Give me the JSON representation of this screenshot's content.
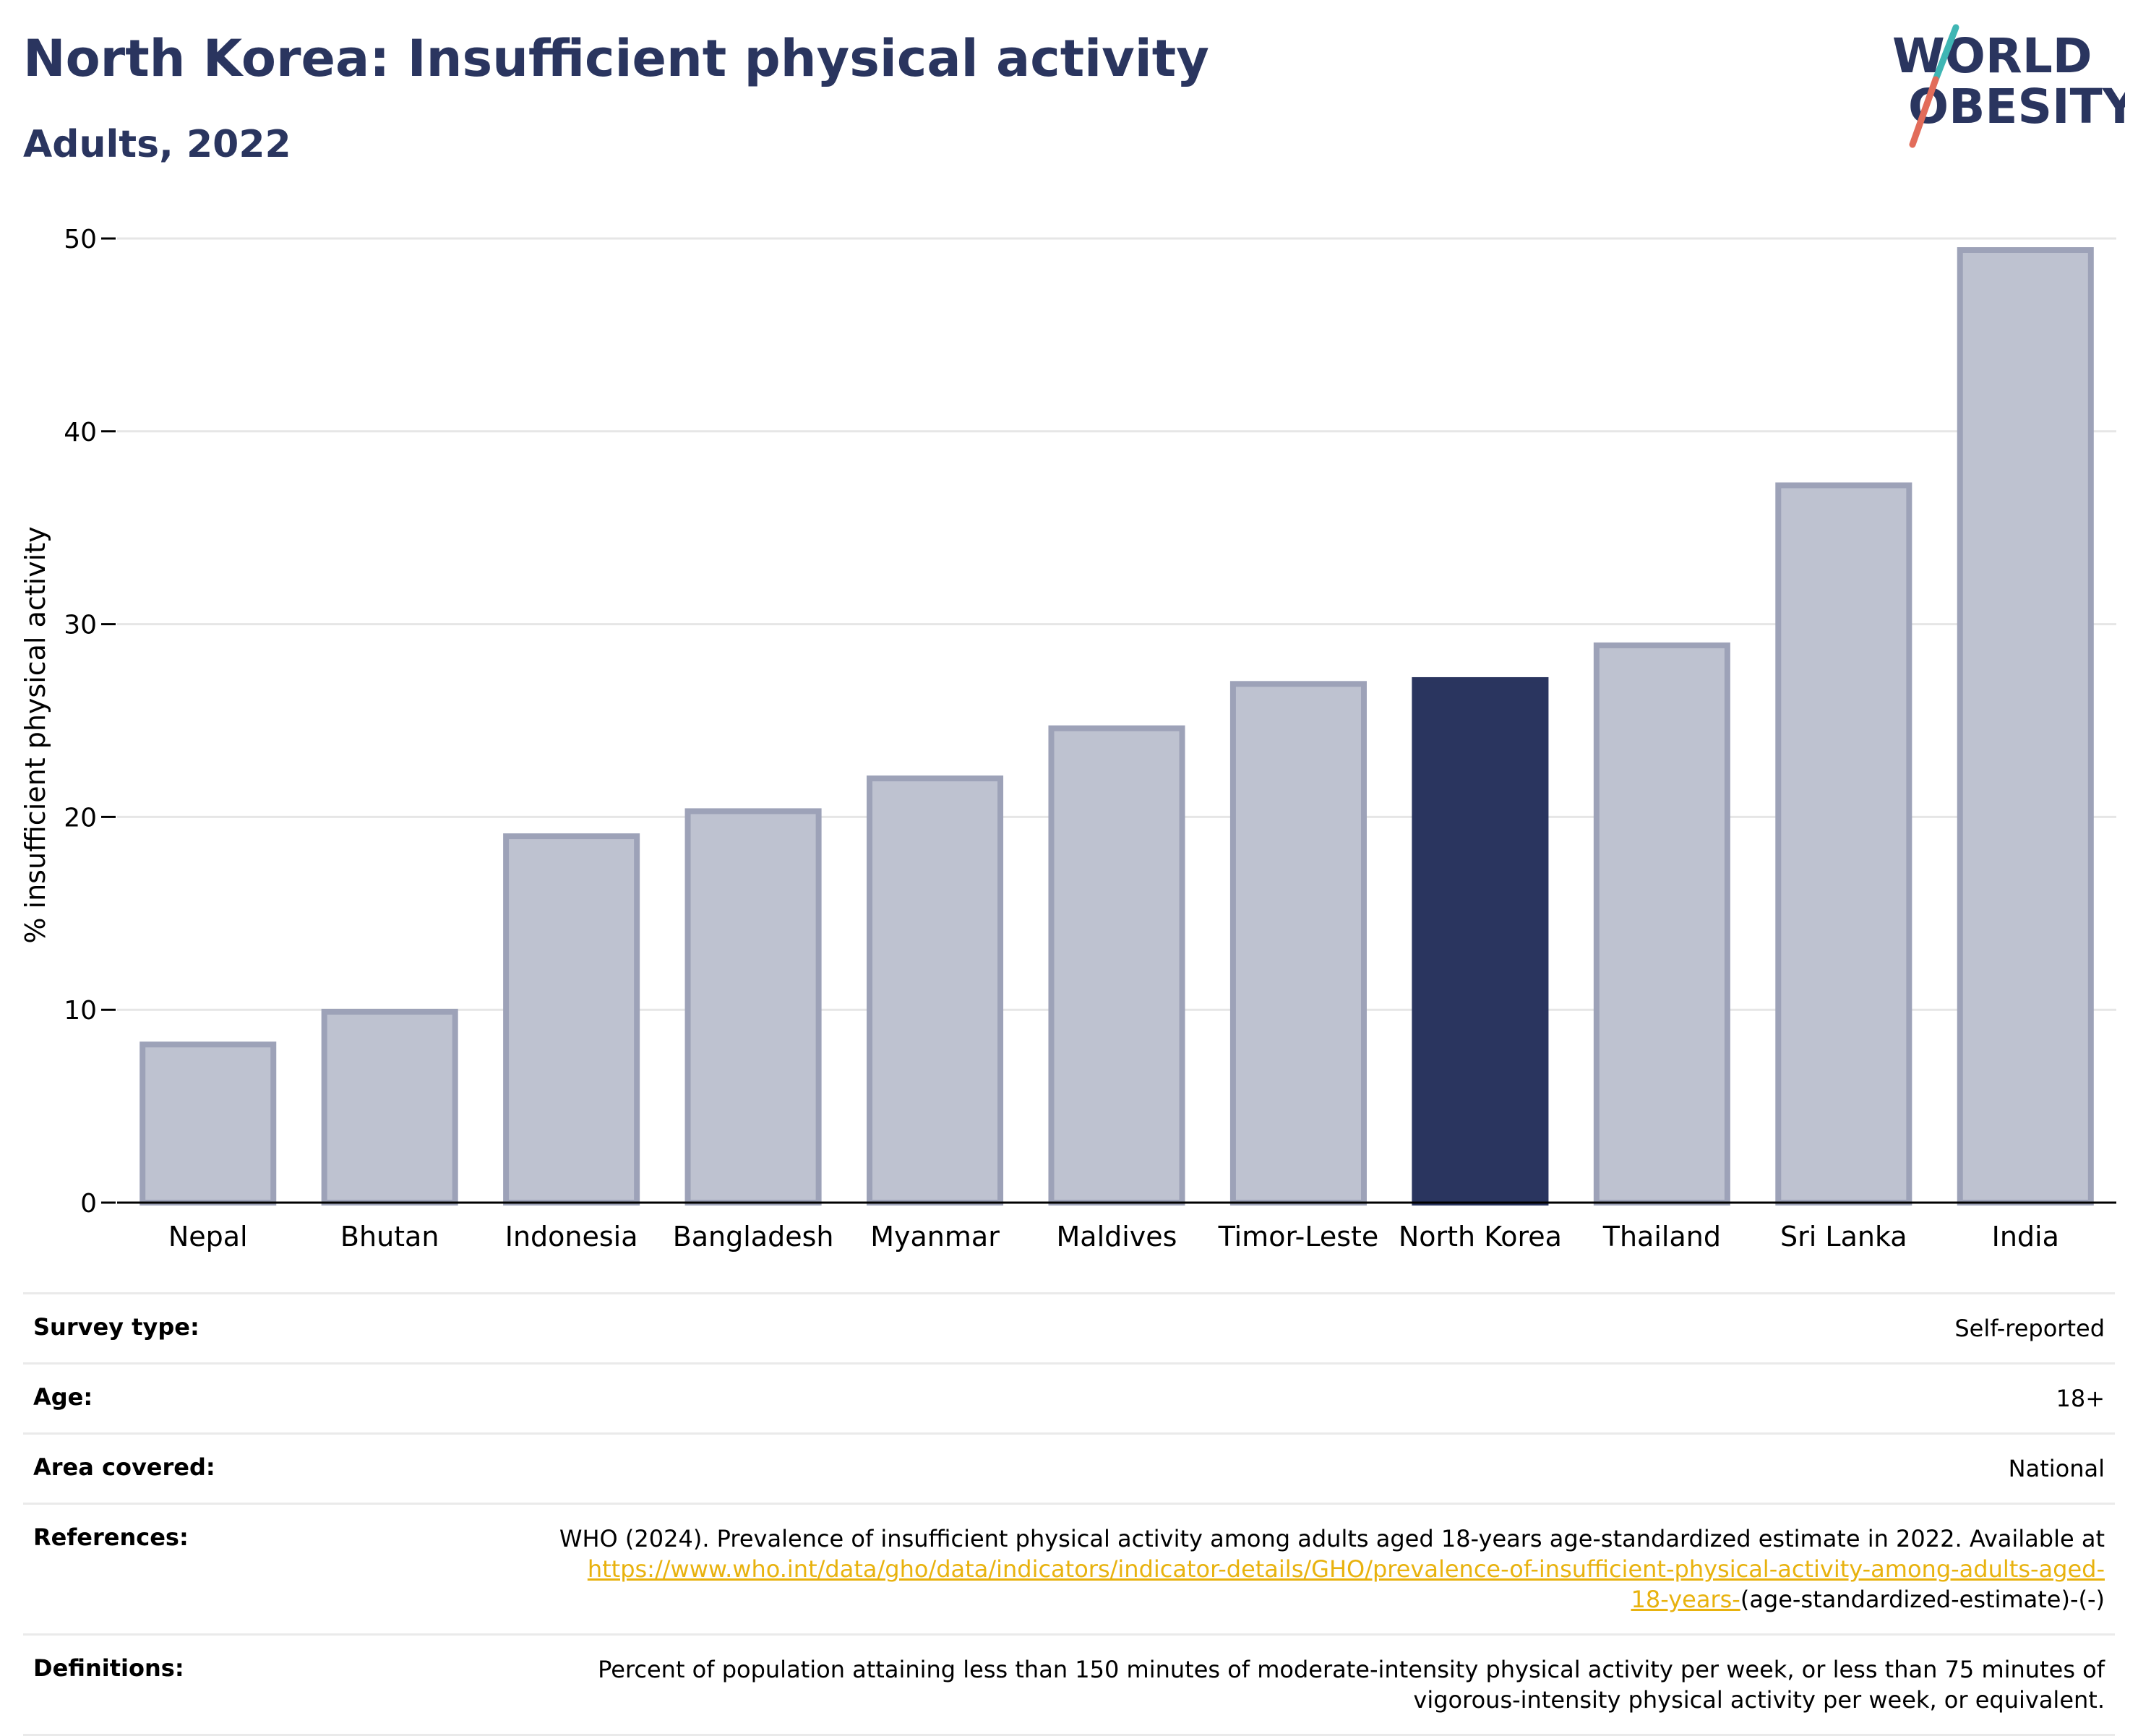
{
  "title": "North Korea: Insufficient physical activity",
  "subtitle": "Adults, 2022",
  "logo": {
    "line1": "WORLD",
    "line2": "OBESITY",
    "colors": [
      "#2a355f",
      "#e26c5a",
      "#3fb6b4"
    ]
  },
  "colors": {
    "highlight": "#2a355f",
    "bar": "#bec2d0",
    "bar_stroke": "#9da2b8",
    "grid": "#e6e6e6",
    "text_dark": "#2a355f"
  },
  "chart_data": {
    "type": "bar",
    "categories": [
      "Nepal",
      "Bhutan",
      "Indonesia",
      "Bangladesh",
      "Myanmar",
      "Maldives",
      "Timor-Leste",
      "North Korea",
      "Thailand",
      "Sri Lanka",
      "India"
    ],
    "values": [
      8.2,
      9.9,
      19.0,
      20.3,
      22.0,
      24.6,
      26.9,
      27.1,
      28.9,
      37.2,
      49.4
    ],
    "highlight": "North Korea",
    "ylabel": "% insufficient physical activity",
    "xlabel": "",
    "ylim": [
      0,
      50
    ],
    "yticks": [
      0,
      10,
      20,
      30,
      40,
      50
    ],
    "grid": true
  },
  "info": {
    "survey_type": {
      "label": "Survey type:",
      "value": "Self-reported"
    },
    "age": {
      "label": "Age:",
      "value": "18+"
    },
    "area": {
      "label": "Area covered:",
      "value": "National"
    },
    "references": {
      "label": "References:",
      "text": "WHO (2024). Prevalence of insufficient physical activity among adults aged 18-years age-standardized estimate in 2022. Available at",
      "link": "https://www.who.int/data/gho/data/indicators/indicator-details/GHO/prevalence-of-insufficient-physical-activity-among-adults-aged-18-years-",
      "suffix": "(age-standardized-estimate)-(-)"
    },
    "definitions": {
      "label": "Definitions:",
      "value": "Percent of population attaining less than 150 minutes of moderate-intensity physical activity per week, or less than 75 minutes of vigorous-intensity physical activity per week, or equivalent."
    }
  }
}
